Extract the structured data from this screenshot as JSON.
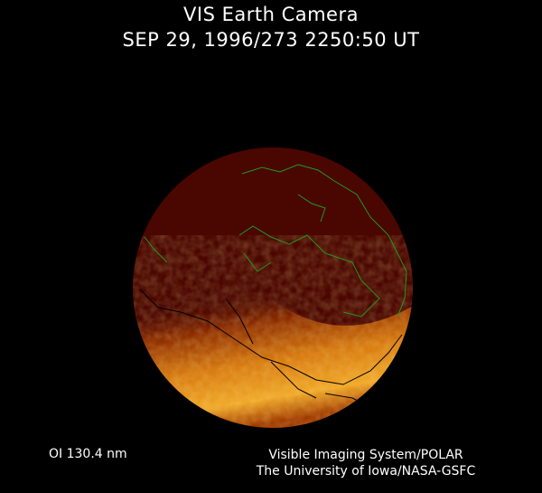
{
  "header": {
    "title": "VIS Earth Camera",
    "timestamp": "SEP 29, 1996/273 2250:50 UT"
  },
  "footer": {
    "wavelength": "OI  130.4 nm",
    "instrument": "Visible Imaging System/POLAR",
    "credit": "The University of Iowa/NASA-GSFC"
  },
  "colors": {
    "background": "#000000",
    "disk_dark": "#4a0600",
    "aurora_bright": "#f0a020",
    "coastline_day": "#1e9a1e",
    "coastline_night": "#000000"
  }
}
